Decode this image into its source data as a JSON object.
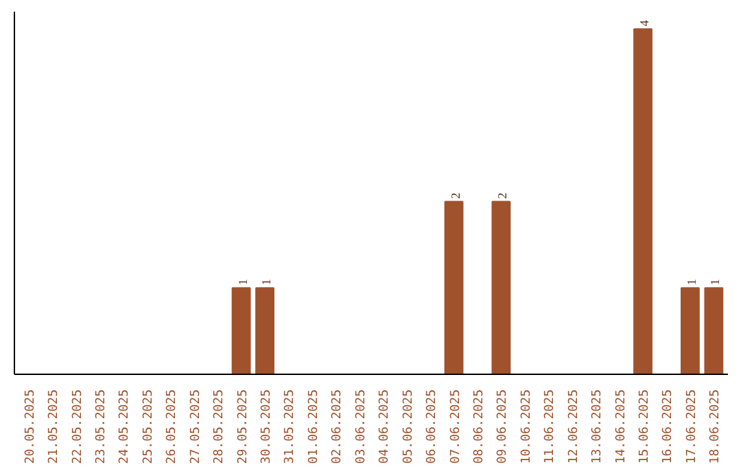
{
  "chart_data": {
    "type": "bar",
    "categories": [
      "20.05.2025",
      "21.05.2025",
      "22.05.2025",
      "23.05.2025",
      "24.05.2025",
      "25.05.2025",
      "26.05.2025",
      "27.05.2025",
      "28.05.2025",
      "29.05.2025",
      "30.05.2025",
      "31.05.2025",
      "01.06.2025",
      "02.06.2025",
      "03.06.2025",
      "04.06.2025",
      "05.06.2025",
      "06.06.2025",
      "07.06.2025",
      "08.06.2025",
      "09.06.2025",
      "10.06.2025",
      "11.06.2025",
      "12.06.2025",
      "13.06.2025",
      "14.06.2025",
      "15.06.2025",
      "16.06.2025",
      "17.06.2025",
      "18.06.2025"
    ],
    "values": [
      0,
      0,
      0,
      0,
      0,
      0,
      0,
      0,
      0,
      1,
      1,
      0,
      0,
      0,
      0,
      0,
      0,
      0,
      2,
      0,
      2,
      0,
      0,
      0,
      0,
      0,
      4,
      0,
      1,
      1
    ],
    "value_labels": [
      null,
      null,
      null,
      null,
      null,
      null,
      null,
      null,
      null,
      "1",
      "1",
      null,
      null,
      null,
      null,
      null,
      null,
      null,
      "2",
      null,
      "2",
      null,
      null,
      null,
      null,
      null,
      "4",
      null,
      "1",
      "1"
    ],
    "color": "#a0522d",
    "grid": false,
    "tick_labels": "x"
  }
}
